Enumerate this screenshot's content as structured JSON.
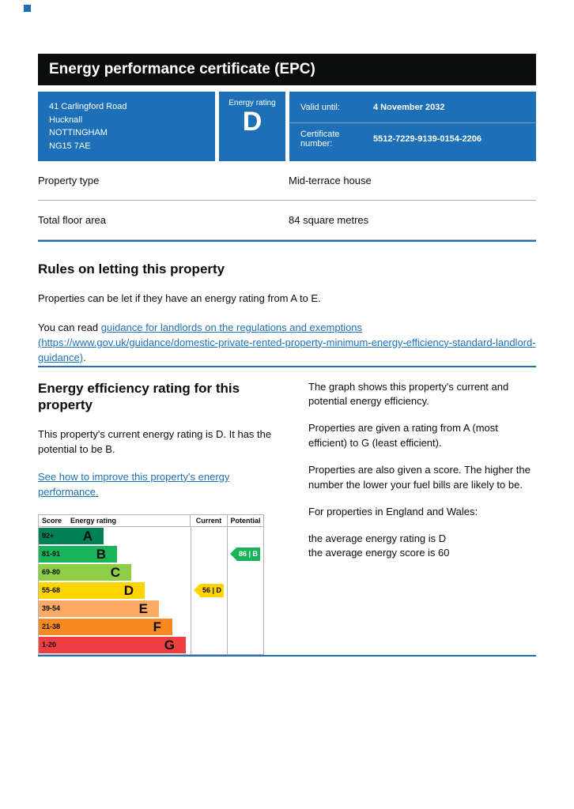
{
  "page": {
    "accent_color": "#1d70b8",
    "banner_color": "#0b0c0c"
  },
  "header": {
    "title": "Energy performance certificate (EPC)"
  },
  "summary": {
    "address_lines": {
      "0": "41 Carlingford Road",
      "1": "Hucknall",
      "2": "NOTTINGHAM",
      "3": "NG15 7AE"
    },
    "energy_rating_label": "Energy rating",
    "energy_rating": "D",
    "valid_until_label": "Valid until:",
    "valid_until": "4 November 2032",
    "certificate_number_label": "Certificate number:",
    "certificate_number": "5512-7229-9139-0154-2206"
  },
  "property_details": {
    "rows": {
      "0": {
        "label": "Property type",
        "value": "Mid-terrace house"
      },
      "1": {
        "label": "Total floor area",
        "value": "84 square metres"
      }
    }
  },
  "rules_section": {
    "heading": "Rules on letting this property",
    "paragraph": "Properties can be let if they have an energy rating from A to E.",
    "link_prefix": "You can read ",
    "link_text": "guidance for landlords on the regulations and exemptions (https://www.gov.uk/guidance/domestic-private-rented-property-minimum-energy-efficiency-standard-landlord-guidance)",
    "link_suffix": "."
  },
  "rating_section": {
    "heading": "Energy efficiency rating for this property",
    "paragraph": "This property's current energy rating is D. It has the potential to be B.",
    "improve_link": "See how to improve this property's energy performance.",
    "right_paragraphs": {
      "0": "The graph shows this property's current and potential energy efficiency.",
      "1": "Properties are given a rating from A (most efficient) to G (least efficient).",
      "2": "Properties are also given a score. The higher the number the lower your fuel bills are likely to be.",
      "3": "For properties in England and Wales:"
    },
    "average_rating_line": "the average energy rating is D",
    "average_score_line": "the average energy score is 60"
  },
  "chart_data": {
    "type": "bar",
    "title": "Energy efficiency rating",
    "columns": {
      "score": "Score",
      "rating": "Energy rating",
      "current": "Current",
      "potential": "Potential"
    },
    "bands": {
      "0": {
        "letter": "A",
        "score": "92+",
        "color": "#008054"
      },
      "1": {
        "letter": "B",
        "score": "81-91",
        "color": "#19b459"
      },
      "2": {
        "letter": "C",
        "score": "69-80",
        "color": "#8dce46"
      },
      "3": {
        "letter": "D",
        "score": "55-68",
        "color": "#ffd500"
      },
      "4": {
        "letter": "E",
        "score": "39-54",
        "color": "#fcaa65"
      },
      "5": {
        "letter": "F",
        "score": "21-38",
        "color": "#f78923"
      },
      "6": {
        "letter": "G",
        "score": "1-20",
        "color": "#ef3e42"
      }
    },
    "current": {
      "score": 56,
      "band": "D",
      "label": "56 | D",
      "color": "#ffd500"
    },
    "potential": {
      "score": 86,
      "band": "B",
      "label": "86 | B",
      "color": "#19b459"
    }
  }
}
